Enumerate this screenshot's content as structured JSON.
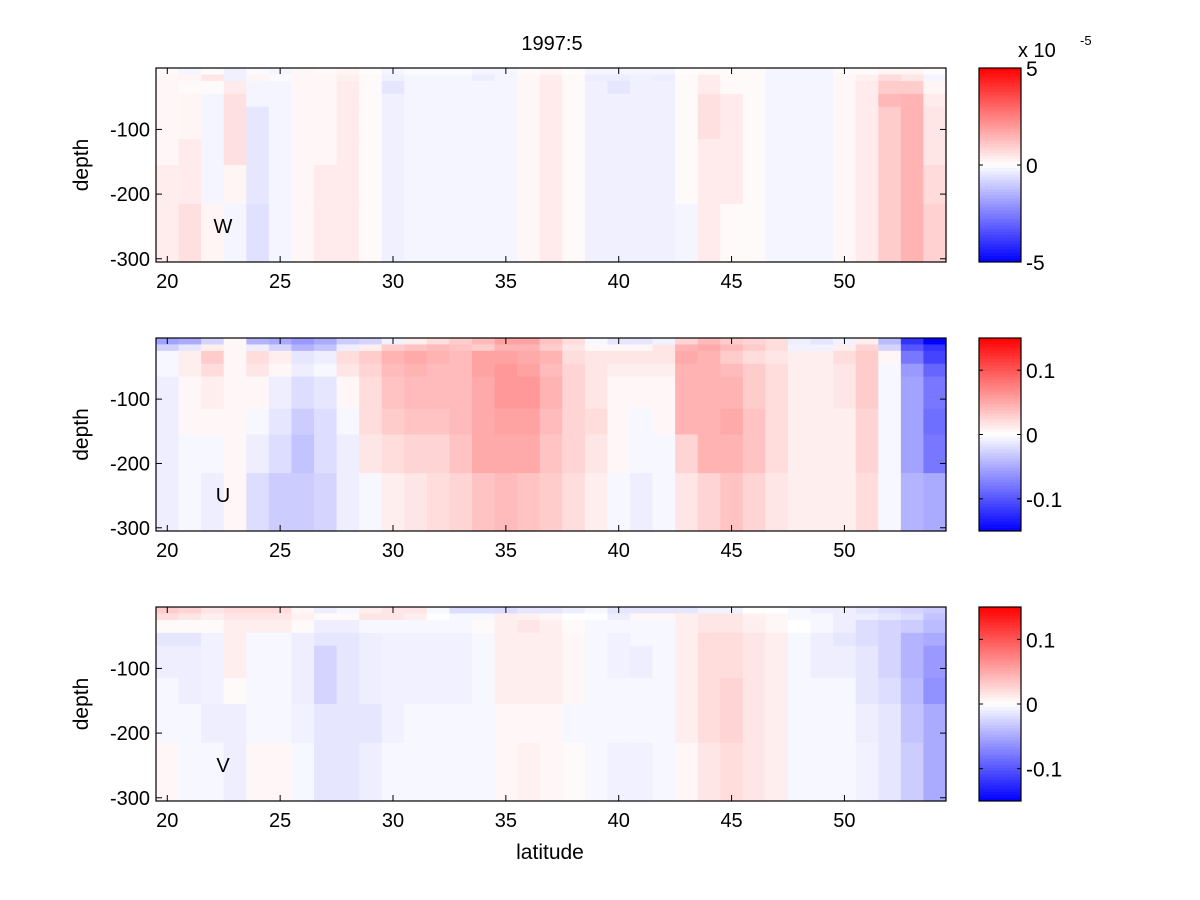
{
  "figure": {
    "title": "1997:5",
    "xlabel": "latitude",
    "colorbar_exponent_base": "x 10",
    "colorbar_exponent_power": "-5"
  },
  "chart_data": [
    {
      "type": "heatmap",
      "panel": "W",
      "label": "W",
      "title": "1997:5",
      "xlabel": "",
      "ylabel": "depth",
      "xlim": [
        19.5,
        54.5
      ],
      "ylim": [
        -305,
        -5
      ],
      "x_ticks": [
        20,
        25,
        30,
        35,
        40,
        45,
        50
      ],
      "y_ticks": [
        -100,
        -200,
        -300
      ],
      "x_centers": [
        20,
        21,
        22,
        23,
        24,
        25,
        26,
        27,
        28,
        29,
        30,
        31,
        32,
        33,
        34,
        35,
        36,
        37,
        38,
        39,
        40,
        41,
        42,
        43,
        44,
        45,
        46,
        47,
        48,
        49,
        50,
        51,
        52,
        53,
        54
      ],
      "depth_edges": [
        -5,
        -15,
        -25,
        -45,
        -65,
        -115,
        -155,
        -215,
        -305
      ],
      "color_limits": [
        -5,
        5
      ],
      "colorbar_ticks": [
        -5,
        0,
        5
      ],
      "colorbar_tick_labels": [
        "-5",
        "0",
        "5"
      ],
      "colorbar_scale": "x 10^-5",
      "values": [
        [
          0.1,
          -0.2,
          0.1,
          -0.3,
          -0.1,
          -0.2,
          0.15,
          0.1,
          0.2,
          0.05,
          -0.2,
          -0.1,
          -0.1,
          -0.1,
          -0.2,
          -0.2,
          0.1,
          0.15,
          0.05,
          -0.2,
          -0.2,
          -0.2,
          -0.2,
          0.05,
          0.1,
          0.1,
          0.1,
          -0.2,
          -0.2,
          -0.2,
          0.1,
          0.1,
          0.2,
          0.2,
          0.05
        ],
        [
          0.15,
          0.2,
          0.5,
          -0.3,
          0.2,
          -0.1,
          0.15,
          0.15,
          0.3,
          0.1,
          -0.3,
          -0.2,
          -0.2,
          -0.2,
          -0.35,
          -0.2,
          0.15,
          0.35,
          0.1,
          -0.35,
          -0.35,
          -0.3,
          -0.35,
          0.1,
          0.35,
          0.1,
          0.1,
          -0.2,
          -0.2,
          -0.2,
          0.15,
          0.3,
          0.7,
          0.5,
          -0.2
        ],
        [
          0.15,
          0.1,
          0.1,
          0.4,
          -0.2,
          -0.2,
          0.15,
          0.15,
          0.4,
          0.1,
          -0.5,
          -0.2,
          -0.2,
          -0.2,
          -0.2,
          -0.2,
          0.15,
          0.4,
          0.1,
          -0.3,
          -0.5,
          -0.3,
          -0.3,
          0.1,
          0.4,
          0.1,
          0.1,
          -0.2,
          -0.2,
          -0.2,
          0.15,
          0.4,
          1.0,
          1.0,
          0.2
        ],
        [
          0.15,
          0.2,
          -0.2,
          0.6,
          -0.2,
          -0.2,
          0.15,
          0.15,
          0.4,
          0.1,
          -0.3,
          -0.2,
          -0.2,
          -0.2,
          -0.2,
          -0.2,
          0.15,
          0.4,
          0.1,
          -0.3,
          -0.3,
          -0.3,
          -0.3,
          0.1,
          0.6,
          0.4,
          0.1,
          -0.2,
          -0.2,
          -0.2,
          0.15,
          0.4,
          1.4,
          1.5,
          0.4
        ],
        [
          0.15,
          0.2,
          -0.2,
          0.6,
          -0.5,
          -0.2,
          0.15,
          0.15,
          0.4,
          0.1,
          -0.3,
          -0.2,
          -0.2,
          -0.2,
          -0.2,
          -0.2,
          0.15,
          0.4,
          0.1,
          -0.3,
          -0.3,
          -0.3,
          -0.3,
          0.1,
          0.6,
          0.4,
          0.1,
          -0.2,
          -0.2,
          -0.2,
          0.15,
          0.4,
          1.0,
          1.5,
          0.5
        ],
        [
          0.15,
          0.4,
          -0.2,
          0.6,
          -0.5,
          -0.2,
          0.15,
          0.15,
          0.4,
          0.1,
          -0.3,
          -0.2,
          -0.2,
          -0.2,
          -0.2,
          -0.2,
          0.15,
          0.4,
          0.1,
          -0.3,
          -0.3,
          -0.3,
          -0.3,
          0.1,
          0.4,
          0.4,
          0.1,
          -0.2,
          -0.2,
          -0.2,
          0.15,
          0.4,
          1.0,
          1.5,
          0.5
        ],
        [
          0.35,
          0.4,
          -0.2,
          0.2,
          -0.5,
          -0.2,
          0.15,
          0.4,
          0.4,
          0.1,
          -0.3,
          -0.2,
          -0.2,
          -0.2,
          -0.2,
          -0.2,
          0.15,
          0.4,
          0.1,
          -0.3,
          -0.3,
          -0.3,
          -0.3,
          0.1,
          0.4,
          0.4,
          0.1,
          -0.2,
          -0.2,
          -0.2,
          0.15,
          0.4,
          1.0,
          1.5,
          0.7
        ],
        [
          0.35,
          0.6,
          0.2,
          -0.2,
          -0.6,
          -0.2,
          0.15,
          0.4,
          0.4,
          0.1,
          -0.3,
          -0.2,
          -0.2,
          -0.2,
          -0.2,
          -0.2,
          0.15,
          0.4,
          0.1,
          -0.3,
          -0.3,
          -0.3,
          -0.3,
          -0.2,
          0.4,
          0.1,
          0.1,
          -0.2,
          -0.2,
          -0.2,
          0.15,
          0.4,
          1.0,
          1.5,
          0.9
        ]
      ]
    },
    {
      "type": "heatmap",
      "panel": "U",
      "label": "U",
      "xlabel": "",
      "ylabel": "depth",
      "xlim": [
        19.5,
        54.5
      ],
      "ylim": [
        -305,
        -5
      ],
      "x_ticks": [
        20,
        25,
        30,
        35,
        40,
        45,
        50
      ],
      "y_ticks": [
        -100,
        -200,
        -300
      ],
      "x_centers": [
        20,
        21,
        22,
        23,
        24,
        25,
        26,
        27,
        28,
        29,
        30,
        31,
        32,
        33,
        34,
        35,
        36,
        37,
        38,
        39,
        40,
        41,
        42,
        43,
        44,
        45,
        46,
        47,
        48,
        49,
        50,
        51,
        52,
        53,
        54
      ],
      "depth_edges": [
        -5,
        -15,
        -25,
        -45,
        -65,
        -115,
        -155,
        -215,
        -305
      ],
      "color_limits": [
        -0.15,
        0.15
      ],
      "colorbar_ticks": [
        -0.1,
        0,
        0.1
      ],
      "colorbar_tick_labels": [
        "-0.1",
        "0",
        "0.1"
      ],
      "values": [
        [
          -0.055,
          -0.05,
          -0.025,
          0.005,
          -0.045,
          -0.05,
          -0.06,
          -0.05,
          -0.03,
          -0.025,
          -0.008,
          0.01,
          0.02,
          0.03,
          0.04,
          0.055,
          0.055,
          0.035,
          0.02,
          -0.005,
          -0.015,
          -0.015,
          -0.008,
          0.025,
          0.04,
          0.03,
          0.025,
          0.02,
          -0.01,
          -0.015,
          -0.008,
          0.01,
          -0.04,
          -0.12,
          -0.15
        ],
        [
          -0.027,
          -0.015,
          0.01,
          0.005,
          -0.01,
          -0.025,
          -0.045,
          -0.035,
          -0.01,
          0.01,
          0.03,
          0.035,
          0.04,
          0.035,
          0.03,
          0.045,
          0.045,
          0.03,
          0.015,
          0.004,
          0.005,
          0.005,
          0.015,
          0.045,
          0.05,
          0.04,
          0.03,
          0.02,
          -0.008,
          -0.008,
          0.01,
          0.025,
          -0.025,
          -0.1,
          -0.12
        ],
        [
          -0.005,
          0.01,
          0.03,
          0.005,
          0.02,
          0.01,
          -0.015,
          -0.01,
          0.02,
          0.03,
          0.045,
          0.05,
          0.045,
          0.04,
          0.055,
          0.055,
          0.05,
          0.045,
          0.02,
          0.015,
          0.015,
          0.015,
          0.015,
          0.05,
          0.045,
          0.03,
          0.02,
          0.015,
          0.01,
          0.01,
          0.02,
          0.03,
          0.005,
          -0.08,
          -0.11
        ],
        [
          -0.005,
          0.01,
          0.02,
          0.005,
          0.015,
          0.005,
          -0.01,
          -0.005,
          0.015,
          0.025,
          0.04,
          0.045,
          0.04,
          0.04,
          0.055,
          0.06,
          0.055,
          0.04,
          0.025,
          0.015,
          0.01,
          0.01,
          0.01,
          0.045,
          0.045,
          0.04,
          0.03,
          0.02,
          0.01,
          0.01,
          0.015,
          0.03,
          -0.005,
          -0.06,
          -0.09
        ],
        [
          -0.01,
          0.005,
          0.01,
          0.005,
          0.005,
          -0.01,
          -0.02,
          -0.015,
          0.005,
          0.02,
          0.035,
          0.04,
          0.04,
          0.04,
          0.05,
          0.06,
          0.06,
          0.045,
          0.025,
          0.015,
          0.005,
          0.005,
          0.005,
          0.045,
          0.045,
          0.045,
          0.03,
          0.02,
          0.01,
          0.01,
          0.015,
          0.03,
          -0.005,
          -0.055,
          -0.08
        ],
        [
          -0.01,
          0.005,
          0.005,
          0.005,
          -0.005,
          -0.015,
          -0.03,
          -0.02,
          -0.005,
          0.02,
          0.03,
          0.035,
          0.035,
          0.04,
          0.05,
          0.055,
          0.055,
          0.04,
          0.025,
          0.02,
          0.005,
          -0.005,
          0.005,
          0.045,
          0.045,
          0.05,
          0.035,
          0.02,
          0.01,
          0.01,
          0.01,
          0.025,
          -0.005,
          -0.055,
          -0.085
        ],
        [
          -0.01,
          -0.005,
          -0.005,
          0.005,
          -0.01,
          -0.02,
          -0.035,
          -0.02,
          -0.01,
          0.015,
          0.02,
          0.025,
          0.025,
          0.035,
          0.05,
          0.05,
          0.05,
          0.035,
          0.025,
          0.015,
          0.005,
          -0.005,
          -0.005,
          0.025,
          0.045,
          0.045,
          0.035,
          0.02,
          0.01,
          0.01,
          0.01,
          0.025,
          -0.005,
          -0.055,
          -0.08
        ],
        [
          -0.01,
          -0.005,
          -0.01,
          0.005,
          -0.02,
          -0.03,
          -0.03,
          -0.025,
          -0.01,
          -0.005,
          0.01,
          0.015,
          0.02,
          0.025,
          0.035,
          0.04,
          0.035,
          0.03,
          0.02,
          0.01,
          -0.005,
          -0.01,
          -0.005,
          0.015,
          0.025,
          0.035,
          0.025,
          0.015,
          0.01,
          0.01,
          0.01,
          0.02,
          -0.005,
          -0.045,
          -0.05
        ]
      ]
    },
    {
      "type": "heatmap",
      "panel": "V",
      "label": "V",
      "xlabel": "latitude",
      "ylabel": "depth",
      "xlim": [
        19.5,
        54.5
      ],
      "ylim": [
        -305,
        -5
      ],
      "x_ticks": [
        20,
        25,
        30,
        35,
        40,
        45,
        50
      ],
      "y_ticks": [
        -100,
        -200,
        -300
      ],
      "x_centers": [
        20,
        21,
        22,
        23,
        24,
        25,
        26,
        27,
        28,
        29,
        30,
        31,
        32,
        33,
        34,
        35,
        36,
        37,
        38,
        39,
        40,
        41,
        42,
        43,
        44,
        45,
        46,
        47,
        48,
        49,
        50,
        51,
        52,
        53,
        54
      ],
      "depth_edges": [
        -5,
        -15,
        -25,
        -45,
        -65,
        -115,
        -155,
        -215,
        -305
      ],
      "color_limits": [
        -0.15,
        0.15
      ],
      "colorbar_ticks": [
        -0.1,
        0,
        0.1
      ],
      "colorbar_tick_labels": [
        "-0.1",
        "0",
        "0.1"
      ],
      "values": [
        [
          0.03,
          0.025,
          0.015,
          0.02,
          0.02,
          0.02,
          0.005,
          -0.01,
          -0.005,
          0.01,
          0.015,
          0.015,
          -0.005,
          -0.02,
          -0.02,
          -0.02,
          -0.015,
          -0.015,
          -0.01,
          -0.005,
          -0.015,
          -0.015,
          -0.015,
          -0.015,
          -0.008,
          -0.008,
          0.0,
          0.0,
          -0.005,
          -0.01,
          -0.01,
          -0.015,
          -0.02,
          -0.025,
          -0.03
        ],
        [
          0.02,
          0.015,
          0.01,
          0.015,
          0.015,
          0.015,
          0.008,
          0.003,
          0.003,
          0.015,
          0.015,
          0.01,
          0.0,
          -0.005,
          -0.005,
          0.01,
          0.008,
          0.005,
          0.0,
          0.0,
          -0.01,
          0.005,
          0.005,
          0.01,
          0.015,
          0.015,
          0.008,
          0.005,
          -0.005,
          -0.005,
          -0.01,
          -0.01,
          -0.015,
          -0.02,
          -0.035
        ],
        [
          0.003,
          0.003,
          0.003,
          0.01,
          0.01,
          0.01,
          0.003,
          -0.01,
          -0.01,
          -0.005,
          -0.005,
          -0.005,
          -0.005,
          -0.005,
          0.003,
          0.01,
          0.015,
          0.01,
          0.003,
          -0.005,
          -0.005,
          -0.005,
          -0.005,
          0.01,
          0.015,
          0.015,
          0.01,
          0.005,
          0.0,
          -0.005,
          -0.01,
          -0.02,
          -0.025,
          -0.03,
          -0.04
        ],
        [
          -0.015,
          -0.015,
          -0.008,
          0.01,
          -0.005,
          -0.005,
          -0.01,
          -0.015,
          -0.015,
          -0.01,
          -0.008,
          -0.008,
          -0.008,
          -0.008,
          -0.005,
          0.01,
          0.01,
          0.01,
          0.005,
          -0.005,
          -0.008,
          -0.005,
          -0.005,
          0.01,
          0.02,
          0.02,
          0.015,
          0.01,
          -0.005,
          -0.01,
          -0.015,
          -0.02,
          -0.025,
          -0.045,
          -0.05
        ],
        [
          -0.01,
          -0.01,
          -0.008,
          0.01,
          -0.005,
          -0.005,
          -0.01,
          -0.025,
          -0.015,
          -0.01,
          -0.008,
          -0.008,
          -0.008,
          -0.008,
          -0.005,
          0.01,
          0.01,
          0.01,
          0.005,
          -0.005,
          -0.008,
          -0.01,
          -0.005,
          0.01,
          0.02,
          0.02,
          0.015,
          0.01,
          -0.005,
          -0.01,
          -0.01,
          -0.015,
          -0.025,
          -0.045,
          -0.06
        ],
        [
          -0.005,
          -0.01,
          -0.008,
          0.003,
          -0.005,
          -0.005,
          -0.01,
          -0.025,
          -0.015,
          -0.01,
          -0.008,
          -0.008,
          -0.008,
          -0.008,
          -0.005,
          0.01,
          0.01,
          0.01,
          0.005,
          -0.005,
          -0.005,
          -0.005,
          -0.005,
          0.01,
          0.02,
          0.025,
          0.015,
          0.01,
          -0.005,
          -0.005,
          -0.005,
          -0.015,
          -0.02,
          -0.04,
          -0.065
        ],
        [
          -0.005,
          -0.005,
          -0.01,
          -0.01,
          -0.005,
          -0.005,
          -0.008,
          -0.015,
          -0.015,
          -0.015,
          -0.008,
          -0.005,
          -0.005,
          -0.005,
          -0.005,
          0.005,
          0.005,
          0.005,
          -0.005,
          -0.005,
          -0.005,
          -0.005,
          -0.005,
          0.01,
          0.02,
          0.025,
          0.015,
          0.01,
          -0.005,
          -0.005,
          -0.005,
          -0.01,
          -0.015,
          -0.035,
          -0.05
        ],
        [
          0.005,
          -0.005,
          -0.005,
          -0.01,
          0.005,
          0.005,
          -0.005,
          -0.015,
          -0.015,
          -0.01,
          -0.005,
          -0.005,
          -0.005,
          -0.005,
          -0.005,
          0.005,
          0.008,
          0.005,
          0.003,
          -0.005,
          -0.008,
          -0.008,
          -0.005,
          0.005,
          0.015,
          0.02,
          0.015,
          0.01,
          -0.005,
          -0.005,
          -0.005,
          -0.008,
          -0.015,
          -0.03,
          -0.05
        ]
      ]
    }
  ]
}
